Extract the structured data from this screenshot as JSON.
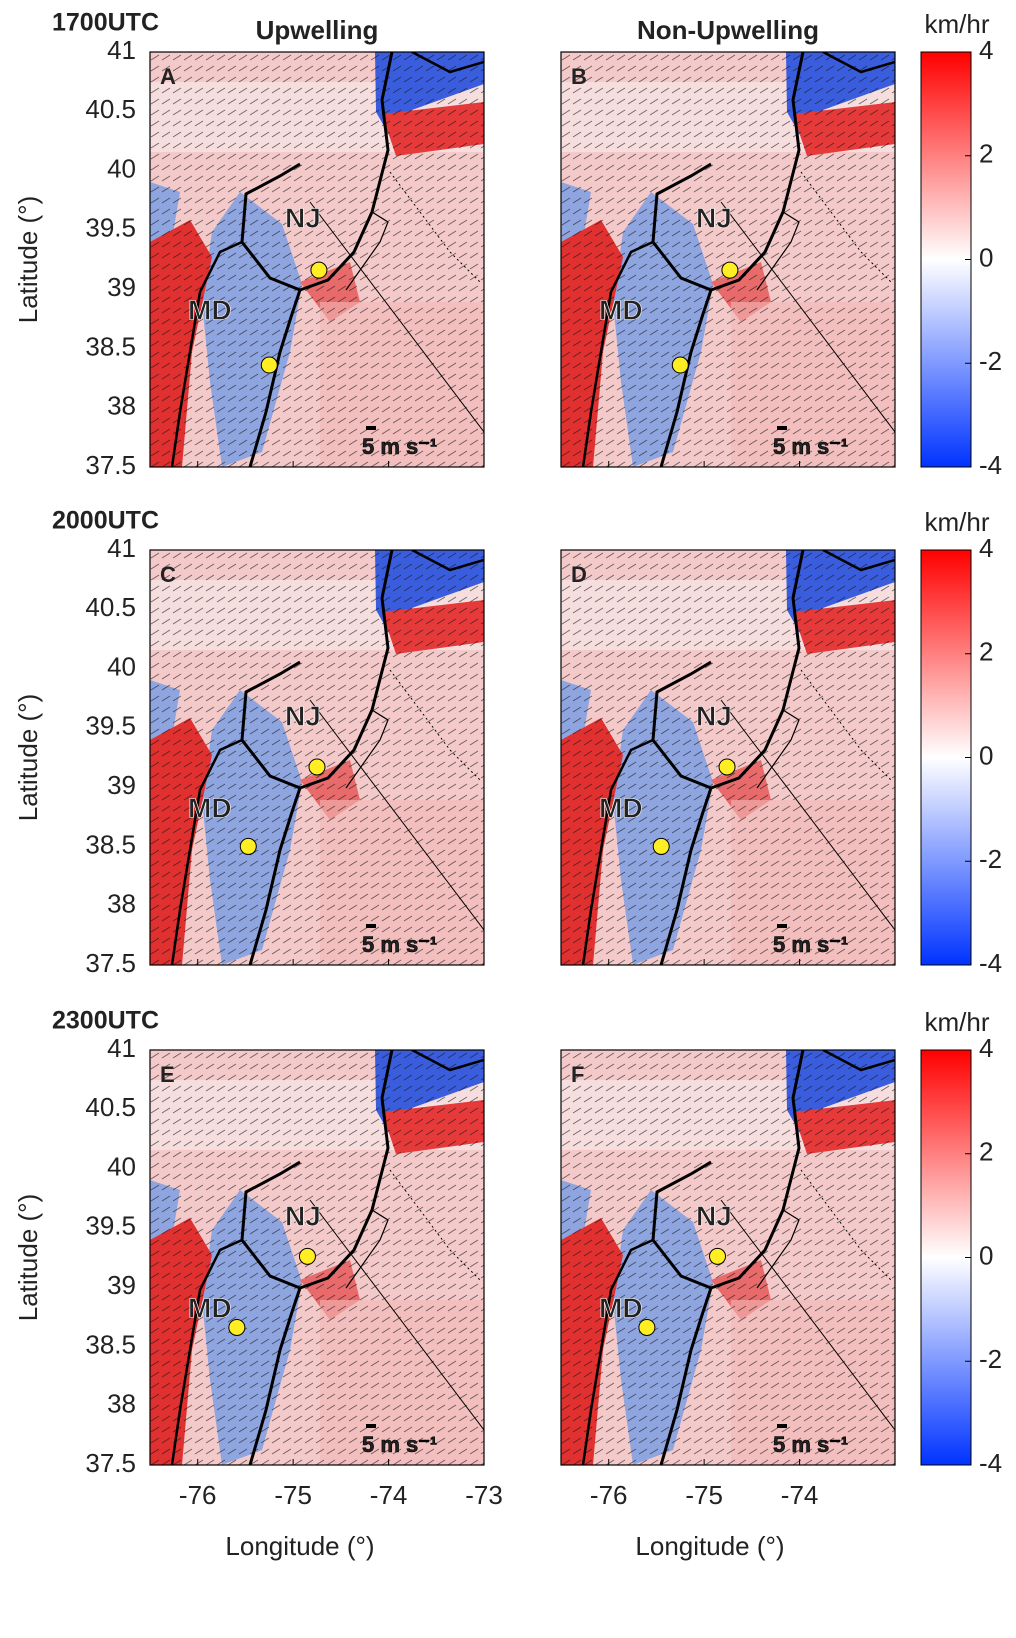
{
  "row_labels": [
    "1700UTC",
    "2000UTC",
    "2300UTC"
  ],
  "columns": [
    {
      "title": "Upwelling",
      "xticks": [
        -76,
        -75,
        -74,
        -73
      ]
    },
    {
      "title": "Non-Upwelling",
      "xticks": [
        -76,
        -75,
        -74
      ]
    }
  ],
  "xlim": [
    -76.5,
    -73
  ],
  "ylim": [
    37.5,
    41
  ],
  "yticks": [
    37.5,
    38,
    38.5,
    39,
    39.5,
    40,
    40.5,
    41
  ],
  "xlabel": "Longitude (°)",
  "ylabel": "Latitude (°)",
  "map_labels": [
    "NJ",
    "MD"
  ],
  "scale_label": "5 m s⁻¹",
  "station_color": "#ffee22",
  "panels": [
    {
      "letter": "A",
      "stations": {
        "lon": [
          -74.73,
          -75.25
        ],
        "lat": [
          39.16,
          38.36
        ]
      }
    },
    {
      "letter": "B",
      "stations": {
        "lon": [
          -74.73,
          -75.25
        ],
        "lat": [
          39.16,
          38.36
        ]
      }
    },
    {
      "letter": "C",
      "stations": {
        "lon": [
          -74.75,
          -75.47
        ],
        "lat": [
          39.17,
          38.5
        ]
      }
    },
    {
      "letter": "D",
      "stations": {
        "lon": [
          -74.76,
          -75.45
        ],
        "lat": [
          39.17,
          38.5
        ]
      }
    },
    {
      "letter": "E",
      "stations": {
        "lon": [
          -74.85,
          -75.59
        ],
        "lat": [
          39.26,
          38.66
        ]
      }
    },
    {
      "letter": "F",
      "stations": {
        "lon": [
          -74.86,
          -75.6
        ],
        "lat": [
          39.26,
          38.66
        ]
      }
    }
  ],
  "colorbar": {
    "unit": "km/hr",
    "lim": [
      -4,
      4
    ],
    "ticks": [
      -4,
      -2,
      0,
      2,
      4
    ],
    "colors": [
      "#0033ff",
      "#ffffff",
      "#ff0000"
    ]
  }
}
